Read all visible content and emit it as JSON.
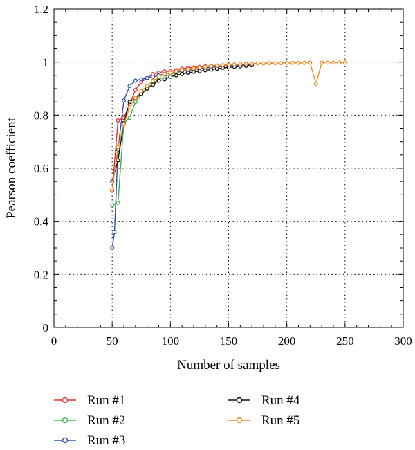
{
  "chart_data": {
    "type": "line",
    "title": "",
    "xlabel": "Number of samples",
    "ylabel": "Pearson coefficient",
    "xlim": [
      0,
      300
    ],
    "ylim": [
      0,
      1.2
    ],
    "xticks": [
      "0",
      "50",
      "100",
      "150",
      "200",
      "250",
      "300"
    ],
    "yticks": [
      "0",
      "0.2",
      "0.4",
      "0.6",
      "0.8",
      "1",
      "1.2"
    ],
    "grid": true,
    "legend_position": "bottom",
    "series": [
      {
        "name": "Run #1",
        "color": "#e03030",
        "x": [
          50,
          55,
          60,
          65,
          70,
          75,
          80,
          85,
          90,
          95,
          100,
          105,
          110,
          115,
          120,
          125,
          130,
          135,
          140,
          145,
          150,
          155,
          160,
          165,
          170
        ],
        "y": [
          0.515,
          0.78,
          0.79,
          0.84,
          0.895,
          0.925,
          0.94,
          0.955,
          0.96,
          0.965,
          0.965,
          0.97,
          0.975,
          0.978,
          0.98,
          0.982,
          0.984,
          0.986,
          0.987,
          0.988,
          0.99,
          0.99,
          0.991,
          0.992,
          0.993
        ]
      },
      {
        "name": "Run #2",
        "color": "#3cb44b",
        "x": [
          50,
          55,
          60,
          65,
          70,
          75,
          80,
          85,
          90,
          95,
          100,
          105,
          110,
          115,
          120,
          125,
          130,
          135,
          140,
          145,
          150,
          155,
          160,
          165,
          170
        ],
        "y": [
          0.46,
          0.47,
          0.77,
          0.79,
          0.85,
          0.88,
          0.9,
          0.92,
          0.935,
          0.945,
          0.955,
          0.96,
          0.965,
          0.97,
          0.975,
          0.978,
          0.98,
          0.982,
          0.984,
          0.986,
          0.988,
          0.989,
          0.99,
          0.991,
          0.992
        ]
      },
      {
        "name": "Run #3",
        "color": "#3050b0",
        "x": [
          50,
          52,
          55,
          60,
          65,
          70,
          75,
          80,
          85,
          90,
          95,
          100,
          105,
          110,
          115,
          120,
          125,
          130,
          135,
          140,
          145,
          150,
          155,
          160,
          165,
          170
        ],
        "y": [
          0.3,
          0.36,
          0.67,
          0.855,
          0.91,
          0.93,
          0.935,
          0.94,
          0.945,
          0.95,
          0.955,
          0.96,
          0.963,
          0.966,
          0.969,
          0.972,
          0.975,
          0.978,
          0.98,
          0.982,
          0.984,
          0.986,
          0.988,
          0.989,
          0.99,
          0.991
        ]
      },
      {
        "name": "Run #4",
        "color": "#111111",
        "x": [
          50,
          55,
          60,
          65,
          70,
          75,
          80,
          85,
          90,
          95,
          100,
          105,
          110,
          115,
          120,
          125,
          130,
          135,
          140,
          145,
          150,
          155,
          160,
          165,
          170
        ],
        "y": [
          0.55,
          0.63,
          0.77,
          0.85,
          0.865,
          0.88,
          0.9,
          0.915,
          0.93,
          0.935,
          0.945,
          0.95,
          0.955,
          0.96,
          0.963,
          0.966,
          0.969,
          0.972,
          0.975,
          0.978,
          0.98,
          0.982,
          0.984,
          0.986,
          0.988
        ]
      },
      {
        "name": "Run #5",
        "color": "#f08a24",
        "x": [
          50,
          55,
          60,
          65,
          70,
          75,
          80,
          85,
          90,
          95,
          100,
          105,
          110,
          115,
          120,
          125,
          130,
          135,
          140,
          145,
          150,
          155,
          160,
          165,
          170,
          175,
          180,
          185,
          190,
          195,
          200,
          205,
          210,
          215,
          220,
          225,
          230,
          235,
          240,
          245,
          250
        ],
        "y": [
          0.52,
          0.68,
          0.765,
          0.83,
          0.865,
          0.89,
          0.91,
          0.93,
          0.945,
          0.955,
          0.96,
          0.965,
          0.97,
          0.973,
          0.976,
          0.979,
          0.982,
          0.984,
          0.986,
          0.988,
          0.99,
          0.991,
          0.992,
          0.993,
          0.994,
          0.995,
          0.995,
          0.996,
          0.996,
          0.996,
          0.997,
          0.997,
          0.997,
          0.997,
          0.998,
          0.918,
          0.998,
          0.998,
          0.998,
          0.998,
          0.998
        ]
      }
    ]
  }
}
